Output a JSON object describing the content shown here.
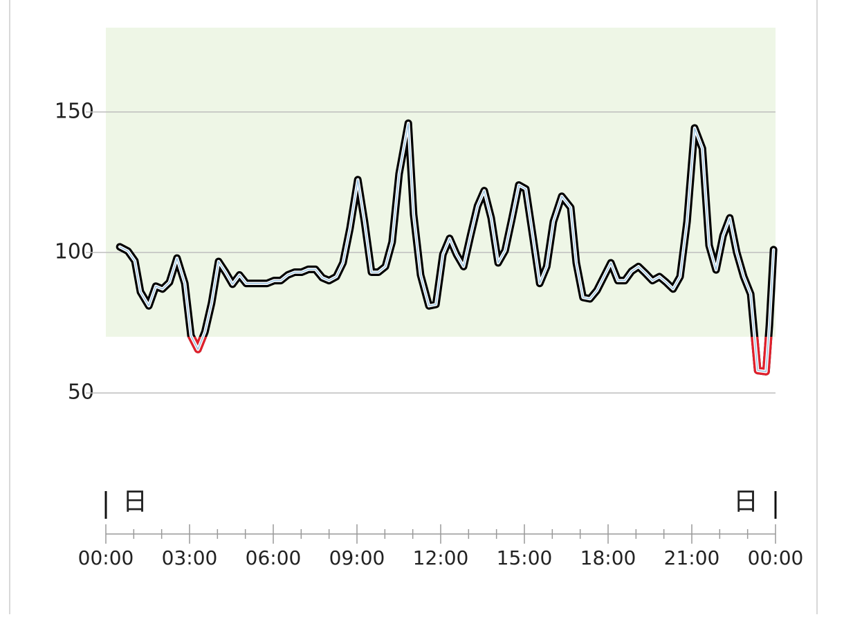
{
  "chart_data": {
    "type": "line",
    "x": [
      0.5,
      0.79,
      1.04,
      1.24,
      1.54,
      1.79,
      2.03,
      2.28,
      2.55,
      2.83,
      3.05,
      3.3,
      3.55,
      3.79,
      4.04,
      4.29,
      4.54,
      4.79,
      5.03,
      5.53,
      5.78,
      6.03,
      6.27,
      6.52,
      6.77,
      7.02,
      7.26,
      7.51,
      7.76,
      8.0,
      8.26,
      8.5,
      8.75,
      9.03,
      9.27,
      9.52,
      9.77,
      10.02,
      10.26,
      10.51,
      10.84,
      11.03,
      11.28,
      11.58,
      11.83,
      12.08,
      12.32,
      12.57,
      12.82,
      13.07,
      13.32,
      13.56,
      13.81,
      14.06,
      14.31,
      14.56,
      14.8,
      15.05,
      15.3,
      15.55,
      15.8,
      16.04,
      16.34,
      16.66,
      16.86,
      17.1,
      17.35,
      17.6,
      17.85,
      18.1,
      18.35,
      18.6,
      18.84,
      19.09,
      19.34,
      19.59,
      19.84,
      20.08,
      20.33,
      20.58,
      20.83,
      21.1,
      21.38,
      21.62,
      21.87,
      22.12,
      22.36,
      22.61,
      22.86,
      23.11,
      23.36,
      23.66,
      23.78,
      23.93
    ],
    "series": [
      {
        "color": "#000000",
        "low_color": "#e0202c",
        "values": [
          102,
          100.5,
          97,
          86,
          81,
          88,
          87,
          89.4,
          98,
          89,
          70.4,
          65.5,
          71.7,
          82,
          96.8,
          93,
          88.7,
          92,
          89,
          89,
          89,
          90,
          90,
          92,
          93,
          93,
          94,
          94,
          91,
          90,
          91.4,
          96.3,
          108.6,
          125.9,
          111,
          93,
          93,
          95,
          103.7,
          128,
          146,
          113.5,
          92,
          81,
          81.5,
          99.3,
          105,
          99.3,
          95,
          106,
          116.5,
          122,
          112.3,
          96.3,
          100.7,
          112.3,
          124,
          122.6,
          106,
          89,
          95,
          111,
          120,
          116,
          96.3,
          84,
          83.5,
          86.5,
          91.4,
          96.3,
          90,
          90,
          93.3,
          95,
          92.6,
          90,
          91.4,
          89.4,
          87,
          91.4,
          111,
          144.3,
          137,
          102.5,
          93.8,
          106,
          112.3,
          100,
          91.4,
          85.2,
          58,
          57.6,
          74,
          101
        ]
      }
    ],
    "target_range": [
      70,
      180
    ],
    "band_color": "#eef6e6",
    "xlim": [
      0,
      24
    ],
    "xticks": [
      {
        "value": 0,
        "label": "00:00"
      },
      {
        "value": 3,
        "label": "03:00"
      },
      {
        "value": 6,
        "label": "06:00"
      },
      {
        "value": 9,
        "label": "09:00"
      },
      {
        "value": 12,
        "label": "12:00"
      },
      {
        "value": 15,
        "label": "15:00"
      },
      {
        "value": 18,
        "label": "18:00"
      },
      {
        "value": 21,
        "label": "21:00"
      },
      {
        "value": 24,
        "label": "00:00"
      }
    ],
    "xminorticks": [
      1,
      2,
      4,
      5,
      7,
      8,
      10,
      11,
      13,
      14,
      16,
      17,
      19,
      20,
      22,
      23
    ],
    "ylim": [
      20,
      180
    ],
    "yticks": [
      50,
      100,
      150
    ],
    "grid": true,
    "annotations": [
      "日",
      "日"
    ]
  }
}
